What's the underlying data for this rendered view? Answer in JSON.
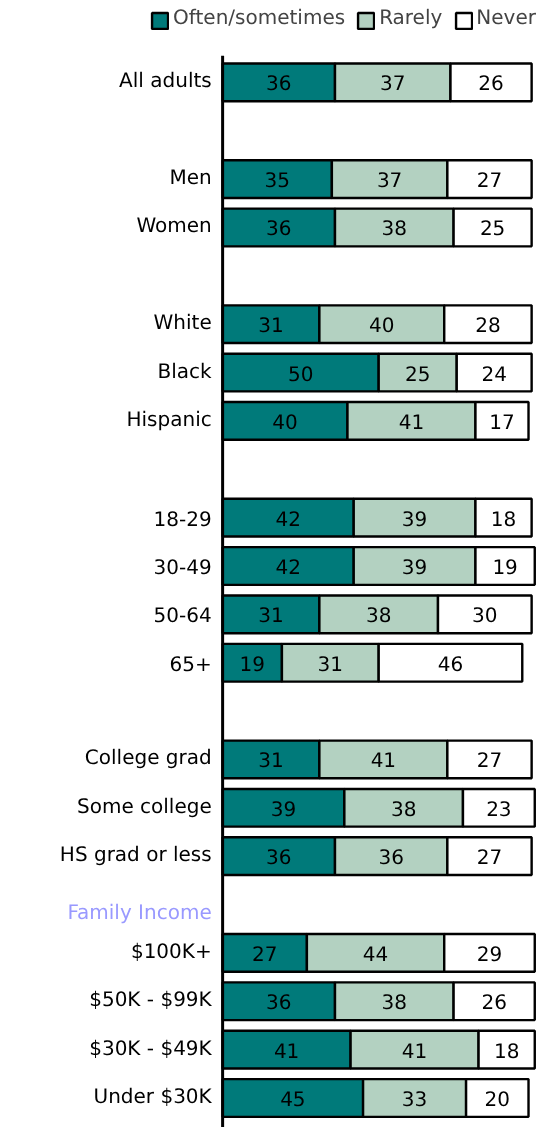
{
  "chart_data": {
    "type": "bar",
    "orientation": "horizontal",
    "stacked": true,
    "categories": [
      "All adults",
      null,
      "Men",
      "Women",
      null,
      "White",
      "Black",
      "Hispanic",
      null,
      "18-29",
      "30-49",
      "50-64",
      "65+",
      null,
      "College grad",
      "Some college",
      "HS grad or less",
      null,
      "$100K+",
      "$50K - $99K",
      "$30K - $49K",
      "Under $30K"
    ],
    "series": [
      {
        "name": "Often/sometimes",
        "color": "#007a7a",
        "values": [
          36,
          null,
          35,
          36,
          null,
          31,
          50,
          40,
          null,
          42,
          42,
          31,
          19,
          null,
          31,
          39,
          36,
          null,
          27,
          36,
          41,
          45
        ]
      },
      {
        "name": "Rarely",
        "color": "#b3d1c1",
        "values": [
          37,
          null,
          37,
          38,
          null,
          40,
          25,
          41,
          null,
          39,
          39,
          38,
          31,
          null,
          41,
          38,
          36,
          null,
          44,
          38,
          41,
          33
        ]
      },
      {
        "name": "Never",
        "color": "#ffffff",
        "values": [
          26,
          null,
          27,
          25,
          null,
          28,
          24,
          17,
          null,
          18,
          19,
          30,
          46,
          null,
          27,
          23,
          27,
          null,
          29,
          26,
          18,
          20
        ]
      }
    ],
    "annotations": [
      "Family Income"
    ],
    "data_labels": true,
    "legend": "top",
    "tick_labels": "y"
  }
}
